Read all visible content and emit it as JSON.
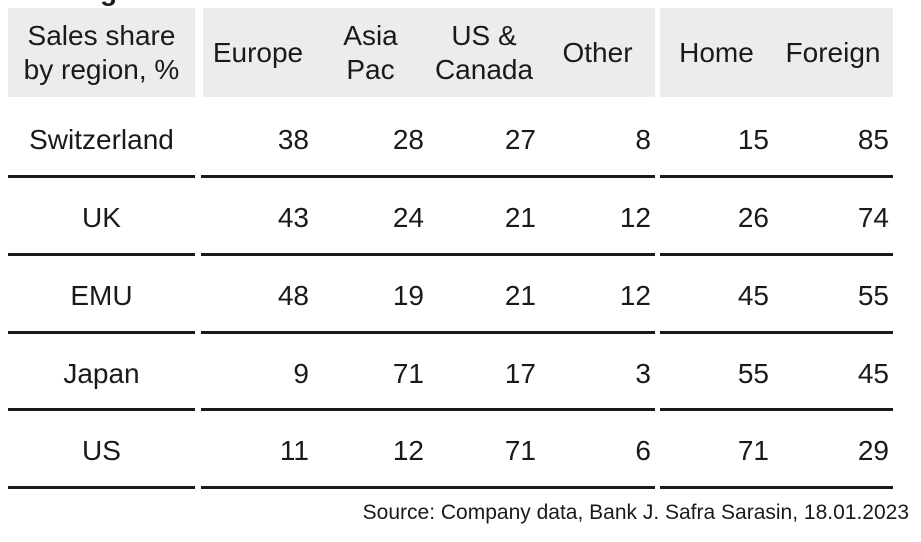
{
  "chart_data": {
    "type": "table",
    "fragment_top": "g",
    "header_corner": "Sales share\nby region, %",
    "columns": [
      "Europe",
      "Asia\nPac",
      "US &\nCanada",
      "Other",
      "Home",
      "Foreign"
    ],
    "rows": [
      {
        "label": "Switzerland",
        "values": [
          38,
          28,
          27,
          8,
          15,
          85
        ]
      },
      {
        "label": "UK",
        "values": [
          43,
          24,
          21,
          12,
          26,
          74
        ]
      },
      {
        "label": "EMU",
        "values": [
          48,
          19,
          21,
          12,
          45,
          55
        ]
      },
      {
        "label": "Japan",
        "values": [
          9,
          71,
          17,
          3,
          55,
          45
        ]
      },
      {
        "label": "US",
        "values": [
          11,
          12,
          71,
          6,
          71,
          29
        ]
      }
    ],
    "column_groups": [
      [
        0
      ],
      [
        1,
        2,
        3,
        4
      ],
      [
        5,
        6
      ]
    ]
  },
  "source": "Source: Company data, Bank J. Safra Sarasin, 18.01.2023"
}
